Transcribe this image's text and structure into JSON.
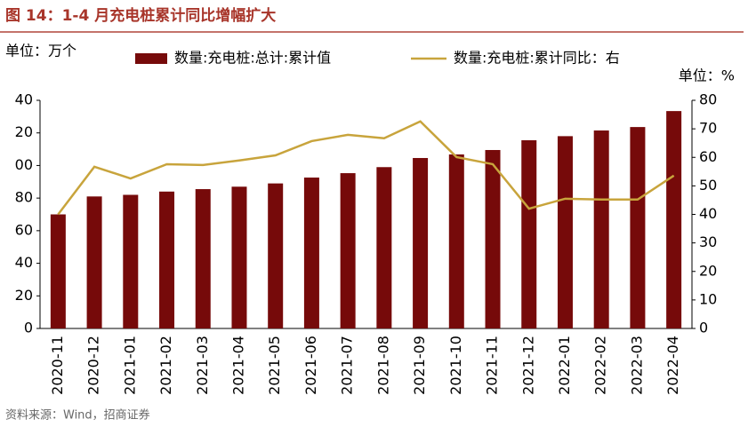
{
  "chart_data": {
    "type": "bar_line",
    "title": "图 14：1-4 月充电桩累计同比增幅扩大",
    "y_label": "单位：万个",
    "y2_label": "单位：%",
    "source": "资料来源：Wind，招商证券",
    "categories": [
      "2020-11",
      "2020-12",
      "2021-01",
      "2021-02",
      "2021-03",
      "2021-04",
      "2021-05",
      "2021-06",
      "2021-07",
      "2021-08",
      "2021-09",
      "2021-10",
      "2021-11",
      "2021-12",
      "2022-01",
      "2022-02",
      "2022-03",
      "2022-04"
    ],
    "series": [
      {
        "name": "数量:充电桩:总计:累计值",
        "type": "bar",
        "color": "#760a0a",
        "values": [
          70,
          81,
          82,
          84,
          85.5,
          87,
          89,
          92.6,
          95.3,
          99,
          104.6,
          106.8,
          109.5,
          115.5,
          118,
          121.5,
          123.6,
          133.4
        ]
      },
      {
        "name": "数量:充电桩:累计同比：右",
        "type": "line",
        "axis": "y2",
        "color": "#c8a43c",
        "values": [
          40,
          56.7,
          52.6,
          57.6,
          57.3,
          58.9,
          60.7,
          65.7,
          67.9,
          66.7,
          72.6,
          60.1,
          57.6,
          42,
          45.5,
          45.2,
          45.2,
          53.6
        ]
      }
    ],
    "ylim": [
      0,
      140
    ],
    "yticks": [
      0,
      20,
      40,
      60,
      80,
      {
        "value": 100,
        "label": "00"
      },
      {
        "value": 120,
        "label": "20"
      },
      {
        "value": 140,
        "label": "40"
      }
    ],
    "y2lim": [
      0,
      80
    ],
    "y2ticks": [
      0,
      10,
      20,
      30,
      40,
      50,
      60,
      70,
      80
    ],
    "grid": false
  }
}
